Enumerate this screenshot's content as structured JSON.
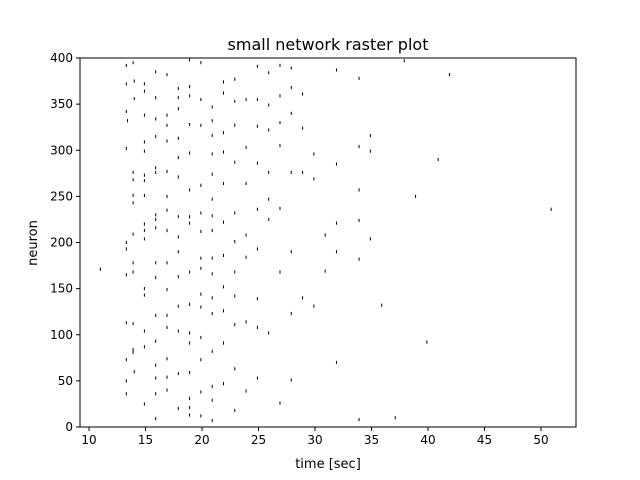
{
  "chart_data": {
    "type": "scatter",
    "title": "small network raster plot",
    "xlabel": "time [sec]",
    "ylabel": "neuron",
    "xlim": [
      9.2,
      53.1
    ],
    "ylim": [
      0,
      400
    ],
    "xticks": [
      10,
      15,
      20,
      25,
      30,
      35,
      40,
      45,
      50
    ],
    "yticks": [
      0,
      50,
      100,
      150,
      200,
      250,
      300,
      350,
      400
    ],
    "grid": false,
    "marker": "vertical-tick",
    "marker_color": "#000000",
    "series": [
      {
        "x": [
          13.3,
          13.3,
          13.3,
          13.4,
          13.3,
          13.3,
          13.3,
          13.3,
          13.3,
          13.3,
          13.3,
          13.3,
          13.9,
          14.0,
          14.0,
          13.9,
          13.9,
          13.9,
          13.9,
          13.9,
          13.9,
          13.9,
          13.9,
          13.9,
          13.9,
          14.0,
          14.9,
          14.9,
          14.9,
          14.9,
          14.9,
          14.9,
          14.9,
          14.9,
          14.9,
          14.9,
          14.9,
          14.9,
          14.9,
          14.9,
          14.9,
          14.9,
          15.9,
          15.9,
          15.9,
          15.9,
          15.9,
          15.9,
          15.9,
          15.9,
          15.9,
          15.9,
          15.9,
          15.9,
          15.9,
          15.9,
          15.9,
          15.9,
          15.9,
          16.9,
          16.9,
          16.9,
          16.9,
          16.9,
          16.9,
          16.9,
          16.9,
          16.9,
          16.9,
          16.9,
          16.9,
          16.9,
          16.9,
          16.9,
          17.9,
          17.9,
          17.9,
          17.9,
          17.9,
          17.9,
          17.9,
          17.9,
          17.9,
          17.9,
          17.9,
          17.9,
          17.9,
          17.9,
          18.9,
          18.9,
          18.9,
          18.9,
          18.9,
          18.9,
          18.9,
          18.9,
          18.9,
          18.9,
          18.9,
          18.9,
          18.9,
          18.9,
          18.9,
          18.9,
          19.9,
          19.9,
          19.9,
          19.9,
          19.9,
          19.9,
          19.9,
          19.9,
          19.9,
          19.9,
          19.9,
          19.9,
          19.9,
          19.9,
          20.9,
          20.9,
          20.9,
          20.9,
          20.9,
          20.9,
          20.9,
          20.9,
          20.9,
          20.9,
          20.9,
          20.9,
          20.9,
          20.9,
          20.9,
          20.9,
          21.9,
          21.9,
          21.9,
          21.9,
          21.9,
          21.9,
          21.9,
          21.9,
          21.9,
          21.9,
          21.9,
          22.9,
          22.9,
          22.9,
          22.9,
          22.9,
          22.9,
          22.9,
          22.9,
          22.9,
          22.9,
          22.9,
          23.9,
          23.9,
          23.9,
          23.9,
          23.9,
          23.9,
          23.9,
          24.9,
          24.9,
          24.9,
          24.9,
          24.9,
          24.9,
          24.9,
          24.9,
          24.9,
          25.9,
          25.9,
          25.9,
          25.9,
          25.9,
          25.9,
          25.9,
          26.9,
          26.9,
          26.9,
          26.9,
          26.9,
          26.9,
          26.9,
          27.9,
          27.9,
          27.9,
          27.9,
          27.9,
          27.9,
          27.9,
          28.9,
          28.9,
          28.9,
          28.9,
          29.9,
          29.9,
          29.9,
          30.9,
          30.9,
          31.9,
          31.9,
          31.9,
          31.9,
          31.9,
          33.9,
          33.9,
          33.9,
          33.9,
          33.9,
          33.9,
          34.9,
          34.9,
          34.9,
          35.9,
          37.1,
          37.9,
          38.9,
          39.9,
          40.9,
          41.9,
          50.9,
          11.0
        ],
        "y": [
          392,
          372,
          342,
          332,
          302,
          200,
          193,
          165,
          113,
          73,
          50,
          36,
          395,
          375,
          356,
          276,
          268,
          251,
          243,
          209,
          178,
          168,
          112,
          84,
          81,
          60,
          372,
          364,
          338,
          309,
          299,
          273,
          267,
          251,
          220,
          213,
          204,
          150,
          143,
          104,
          87,
          25,
          385,
          357,
          334,
          315,
          281,
          276,
          230,
          225,
          216,
          178,
          162,
          121,
          93,
          67,
          53,
          36,
          9,
          382,
          338,
          327,
          310,
          277,
          250,
          235,
          213,
          178,
          149,
          121,
          108,
          74,
          54,
          40,
          367,
          357,
          345,
          313,
          292,
          271,
          228,
          206,
          190,
          163,
          131,
          104,
          58,
          20,
          398,
          369,
          359,
          328,
          297,
          257,
          228,
          221,
          168,
          133,
          102,
          91,
          59,
          31,
          21,
          13,
          395,
          355,
          327,
          262,
          232,
          212,
          183,
          172,
          144,
          130,
          97,
          73,
          38,
          12,
          347,
          332,
          316,
          296,
          274,
          247,
          229,
          213,
          183,
          166,
          140,
          123,
          82,
          44,
          29,
          7,
          374,
          362,
          319,
          298,
          264,
          222,
          186,
          152,
          126,
          91,
          47,
          377,
          353,
          327,
          287,
          232,
          201,
          168,
          142,
          111,
          63,
          18,
          355,
          303,
          264,
          208,
          184,
          114,
          39,
          391,
          355,
          326,
          286,
          236,
          193,
          139,
          108,
          53,
          384,
          349,
          322,
          276,
          247,
          225,
          102,
          392,
          359,
          330,
          305,
          237,
          168,
          26,
          389,
          368,
          340,
          276,
          190,
          123,
          51,
          361,
          324,
          276,
          140,
          296,
          269,
          131,
          208,
          169,
          387,
          285,
          221,
          190,
          70,
          378,
          304,
          257,
          224,
          182,
          8,
          316,
          299,
          204,
          132,
          10,
          397,
          250,
          92,
          290,
          382,
          236,
          171
        ]
      }
    ]
  }
}
